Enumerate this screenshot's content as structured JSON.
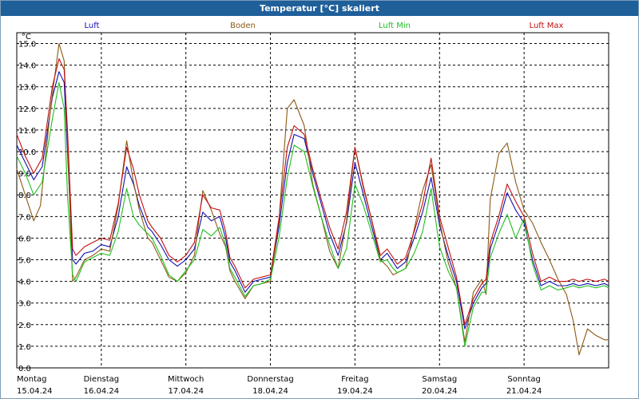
{
  "window": {
    "title": "Temperatur [°C] skaliert"
  },
  "chart_data": {
    "type": "line",
    "title": "Temperatur [°C] skaliert",
    "ylabel": "°C",
    "ylim": [
      0,
      15.5
    ],
    "yticks": [
      "0.0",
      "1.0",
      "2.0",
      "3.0",
      "4.0",
      "5.0",
      "6.0",
      "7.0",
      "8.0",
      "9.0",
      "10.0",
      "11.0",
      "12.0",
      "13.0",
      "14.0",
      "15.0"
    ],
    "xlim": [
      0,
      7
    ],
    "xticks": [
      {
        "day": "Montag",
        "date": "15.04.24"
      },
      {
        "day": "Dienstag",
        "date": "16.04.24"
      },
      {
        "day": "Mittwoch",
        "date": "17.04.24"
      },
      {
        "day": "Donnerstag",
        "date": "18.04.24"
      },
      {
        "day": "Freitag",
        "date": "19.04.24"
      },
      {
        "day": "Samstag",
        "date": "20.04.24"
      },
      {
        "day": "Sonntag",
        "date": "21.04.24"
      }
    ],
    "grid": true,
    "legend_position": "top",
    "series": [
      {
        "name": "Luft",
        "color": "#1010b0",
        "x": [
          0.0,
          0.1,
          0.2,
          0.3,
          0.42,
          0.5,
          0.56,
          0.6,
          0.66,
          0.7,
          0.8,
          0.9,
          1.0,
          1.1,
          1.2,
          1.3,
          1.38,
          1.45,
          1.55,
          1.6,
          1.7,
          1.8,
          1.9,
          2.0,
          2.1,
          2.2,
          2.3,
          2.4,
          2.47,
          2.52,
          2.58,
          2.7,
          2.8,
          2.9,
          3.0,
          3.1,
          3.2,
          3.28,
          3.4,
          3.5,
          3.6,
          3.7,
          3.8,
          3.9,
          4.0,
          4.1,
          4.2,
          4.3,
          4.38,
          4.45,
          4.5,
          4.6,
          4.7,
          4.8,
          4.9,
          5.0,
          5.1,
          5.2,
          5.3,
          5.4,
          5.5,
          5.55,
          5.6,
          5.7,
          5.8,
          5.9,
          6.0,
          6.1,
          6.2,
          6.3,
          6.4,
          6.5,
          6.58,
          6.65,
          6.75,
          6.85,
          6.95,
          7.0
        ],
        "y": [
          10.3,
          9.5,
          8.7,
          9.3,
          12.5,
          13.7,
          13.2,
          10.0,
          5.0,
          4.8,
          5.3,
          5.4,
          5.7,
          5.6,
          7.0,
          9.3,
          8.5,
          7.5,
          6.5,
          6.3,
          5.7,
          5.0,
          4.7,
          5.0,
          5.5,
          7.2,
          6.8,
          7.0,
          6.0,
          4.9,
          4.5,
          3.5,
          4.0,
          4.1,
          4.2,
          6.5,
          9.5,
          10.8,
          10.6,
          9.0,
          7.6,
          6.2,
          5.2,
          6.7,
          9.5,
          8.0,
          6.5,
          5.0,
          5.3,
          4.9,
          4.6,
          4.9,
          6.0,
          7.2,
          8.8,
          6.6,
          5.2,
          4.0,
          1.8,
          3.0,
          3.7,
          3.9,
          5.5,
          6.7,
          8.1,
          7.3,
          6.7,
          5.0,
          3.8,
          4.0,
          3.8,
          3.8,
          3.9,
          3.8,
          3.9,
          3.8,
          3.9,
          3.8
        ]
      },
      {
        "name": "Boden",
        "color": "#8b5a14",
        "x": [
          0.0,
          0.1,
          0.2,
          0.28,
          0.4,
          0.5,
          0.56,
          0.6,
          0.66,
          0.7,
          0.8,
          0.9,
          1.0,
          1.1,
          1.2,
          1.3,
          1.38,
          1.45,
          1.55,
          1.6,
          1.7,
          1.8,
          1.9,
          2.0,
          2.1,
          2.2,
          2.3,
          2.4,
          2.47,
          2.52,
          2.58,
          2.7,
          2.8,
          2.9,
          3.0,
          3.1,
          3.2,
          3.28,
          3.4,
          3.5,
          3.6,
          3.7,
          3.8,
          3.9,
          4.0,
          4.1,
          4.2,
          4.3,
          4.38,
          4.45,
          4.5,
          4.6,
          4.7,
          4.8,
          4.9,
          5.0,
          5.1,
          5.2,
          5.3,
          5.4,
          5.5,
          5.55,
          5.6,
          5.7,
          5.8,
          5.9,
          6.0,
          6.1,
          6.2,
          6.3,
          6.4,
          6.5,
          6.58,
          6.65,
          6.75,
          6.85,
          6.95,
          7.0
        ],
        "y": [
          9.2,
          8.0,
          6.8,
          7.5,
          12.0,
          15.0,
          14.2,
          10.5,
          4.0,
          4.2,
          5.0,
          5.2,
          5.5,
          5.4,
          7.5,
          10.5,
          8.6,
          7.3,
          6.0,
          5.8,
          5.0,
          4.2,
          4.0,
          4.4,
          5.2,
          8.2,
          7.3,
          6.2,
          5.6,
          4.5,
          4.0,
          3.2,
          3.8,
          3.9,
          4.0,
          6.8,
          12.0,
          12.4,
          11.2,
          8.5,
          7.0,
          5.4,
          4.6,
          6.8,
          10.2,
          8.3,
          6.8,
          5.0,
          4.7,
          4.3,
          4.4,
          4.6,
          6.4,
          8.2,
          9.4,
          6.8,
          4.9,
          3.7,
          1.2,
          3.5,
          4.1,
          3.4,
          7.8,
          9.9,
          10.4,
          8.6,
          7.3,
          6.7,
          5.8,
          5.0,
          4.1,
          3.4,
          2.2,
          0.6,
          1.8,
          1.5,
          1.3,
          1.3
        ]
      },
      {
        "name": "Luft Min",
        "color": "#20c020",
        "x": [
          0.0,
          0.1,
          0.2,
          0.3,
          0.42,
          0.5,
          0.56,
          0.6,
          0.66,
          0.7,
          0.8,
          0.9,
          1.0,
          1.1,
          1.2,
          1.3,
          1.38,
          1.45,
          1.55,
          1.6,
          1.7,
          1.8,
          1.9,
          2.0,
          2.1,
          2.2,
          2.3,
          2.4,
          2.47,
          2.52,
          2.58,
          2.7,
          2.8,
          2.9,
          3.0,
          3.1,
          3.2,
          3.28,
          3.4,
          3.5,
          3.6,
          3.7,
          3.8,
          3.9,
          4.0,
          4.1,
          4.2,
          4.3,
          4.38,
          4.45,
          4.5,
          4.6,
          4.7,
          4.8,
          4.9,
          5.0,
          5.1,
          5.2,
          5.3,
          5.4,
          5.5,
          5.55,
          5.6,
          5.7,
          5.8,
          5.9,
          6.0,
          6.1,
          6.2,
          6.3,
          6.4,
          6.5,
          6.58,
          6.65,
          6.75,
          6.85,
          6.95,
          7.0
        ],
        "y": [
          9.8,
          9.0,
          8.0,
          8.6,
          11.5,
          13.2,
          12.0,
          8.0,
          4.3,
          4.0,
          4.9,
          5.1,
          5.3,
          5.2,
          6.3,
          8.3,
          7.0,
          6.6,
          6.2,
          6.0,
          5.2,
          4.3,
          4.0,
          4.5,
          5.0,
          6.4,
          6.1,
          6.5,
          5.7,
          4.6,
          4.2,
          3.3,
          3.8,
          3.9,
          4.1,
          6.0,
          8.8,
          10.3,
          10.0,
          8.4,
          7.0,
          5.7,
          4.6,
          5.5,
          8.5,
          7.5,
          6.2,
          4.9,
          5.0,
          4.6,
          4.4,
          4.6,
          5.3,
          6.3,
          8.3,
          5.6,
          4.5,
          3.7,
          1.0,
          2.8,
          3.5,
          3.5,
          5.1,
          6.2,
          7.1,
          6.0,
          6.9,
          4.8,
          3.6,
          3.8,
          3.6,
          3.7,
          3.8,
          3.7,
          3.8,
          3.7,
          3.8,
          3.7
        ]
      },
      {
        "name": "Luft Max",
        "color": "#c01010",
        "x": [
          0.0,
          0.1,
          0.2,
          0.3,
          0.42,
          0.5,
          0.56,
          0.6,
          0.66,
          0.7,
          0.8,
          0.9,
          1.0,
          1.1,
          1.2,
          1.3,
          1.38,
          1.45,
          1.55,
          1.6,
          1.7,
          1.8,
          1.9,
          2.0,
          2.1,
          2.2,
          2.3,
          2.4,
          2.47,
          2.52,
          2.58,
          2.7,
          2.8,
          2.9,
          3.0,
          3.1,
          3.2,
          3.28,
          3.4,
          3.5,
          3.6,
          3.7,
          3.8,
          3.9,
          4.0,
          4.1,
          4.2,
          4.3,
          4.38,
          4.45,
          4.5,
          4.6,
          4.7,
          4.8,
          4.9,
          5.0,
          5.1,
          5.2,
          5.3,
          5.4,
          5.5,
          5.55,
          5.6,
          5.7,
          5.8,
          5.9,
          6.0,
          6.1,
          6.2,
          6.3,
          6.4,
          6.5,
          6.58,
          6.65,
          6.75,
          6.85,
          6.95,
          7.0
        ],
        "y": [
          10.8,
          9.8,
          9.0,
          9.7,
          13.0,
          14.3,
          13.8,
          11.0,
          5.5,
          5.2,
          5.6,
          5.8,
          6.0,
          5.9,
          7.6,
          10.2,
          9.2,
          8.0,
          6.8,
          6.5,
          6.0,
          5.2,
          4.9,
          5.2,
          5.8,
          8.0,
          7.4,
          7.3,
          6.3,
          5.1,
          4.7,
          3.7,
          4.1,
          4.2,
          4.3,
          6.9,
          10.2,
          11.2,
          10.8,
          9.2,
          7.8,
          6.5,
          5.5,
          7.2,
          10.2,
          8.4,
          6.8,
          5.2,
          5.5,
          5.1,
          4.8,
          5.1,
          6.3,
          7.6,
          9.7,
          7.0,
          5.6,
          4.2,
          2.0,
          3.2,
          3.9,
          4.1,
          5.8,
          7.0,
          8.5,
          7.7,
          7.0,
          5.3,
          4.0,
          4.2,
          4.0,
          4.0,
          4.1,
          4.0,
          4.1,
          4.0,
          4.1,
          4.0
        ]
      }
    ]
  }
}
